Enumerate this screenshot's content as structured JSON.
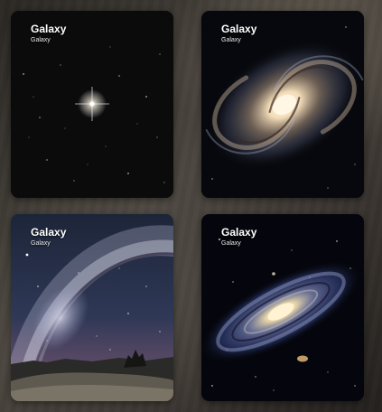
{
  "cards": [
    {
      "title": "Galaxy",
      "subtitle": "Galaxy",
      "image_icon": "bright-star-icon"
    },
    {
      "title": "Galaxy",
      "subtitle": "Galaxy",
      "image_icon": "spiral-galaxy-icon"
    },
    {
      "title": "Galaxy",
      "subtitle": "Galaxy",
      "image_icon": "milky-way-landscape-icon"
    },
    {
      "title": "Galaxy",
      "subtitle": "Galaxy",
      "image_icon": "andromeda-galaxy-icon"
    }
  ]
}
